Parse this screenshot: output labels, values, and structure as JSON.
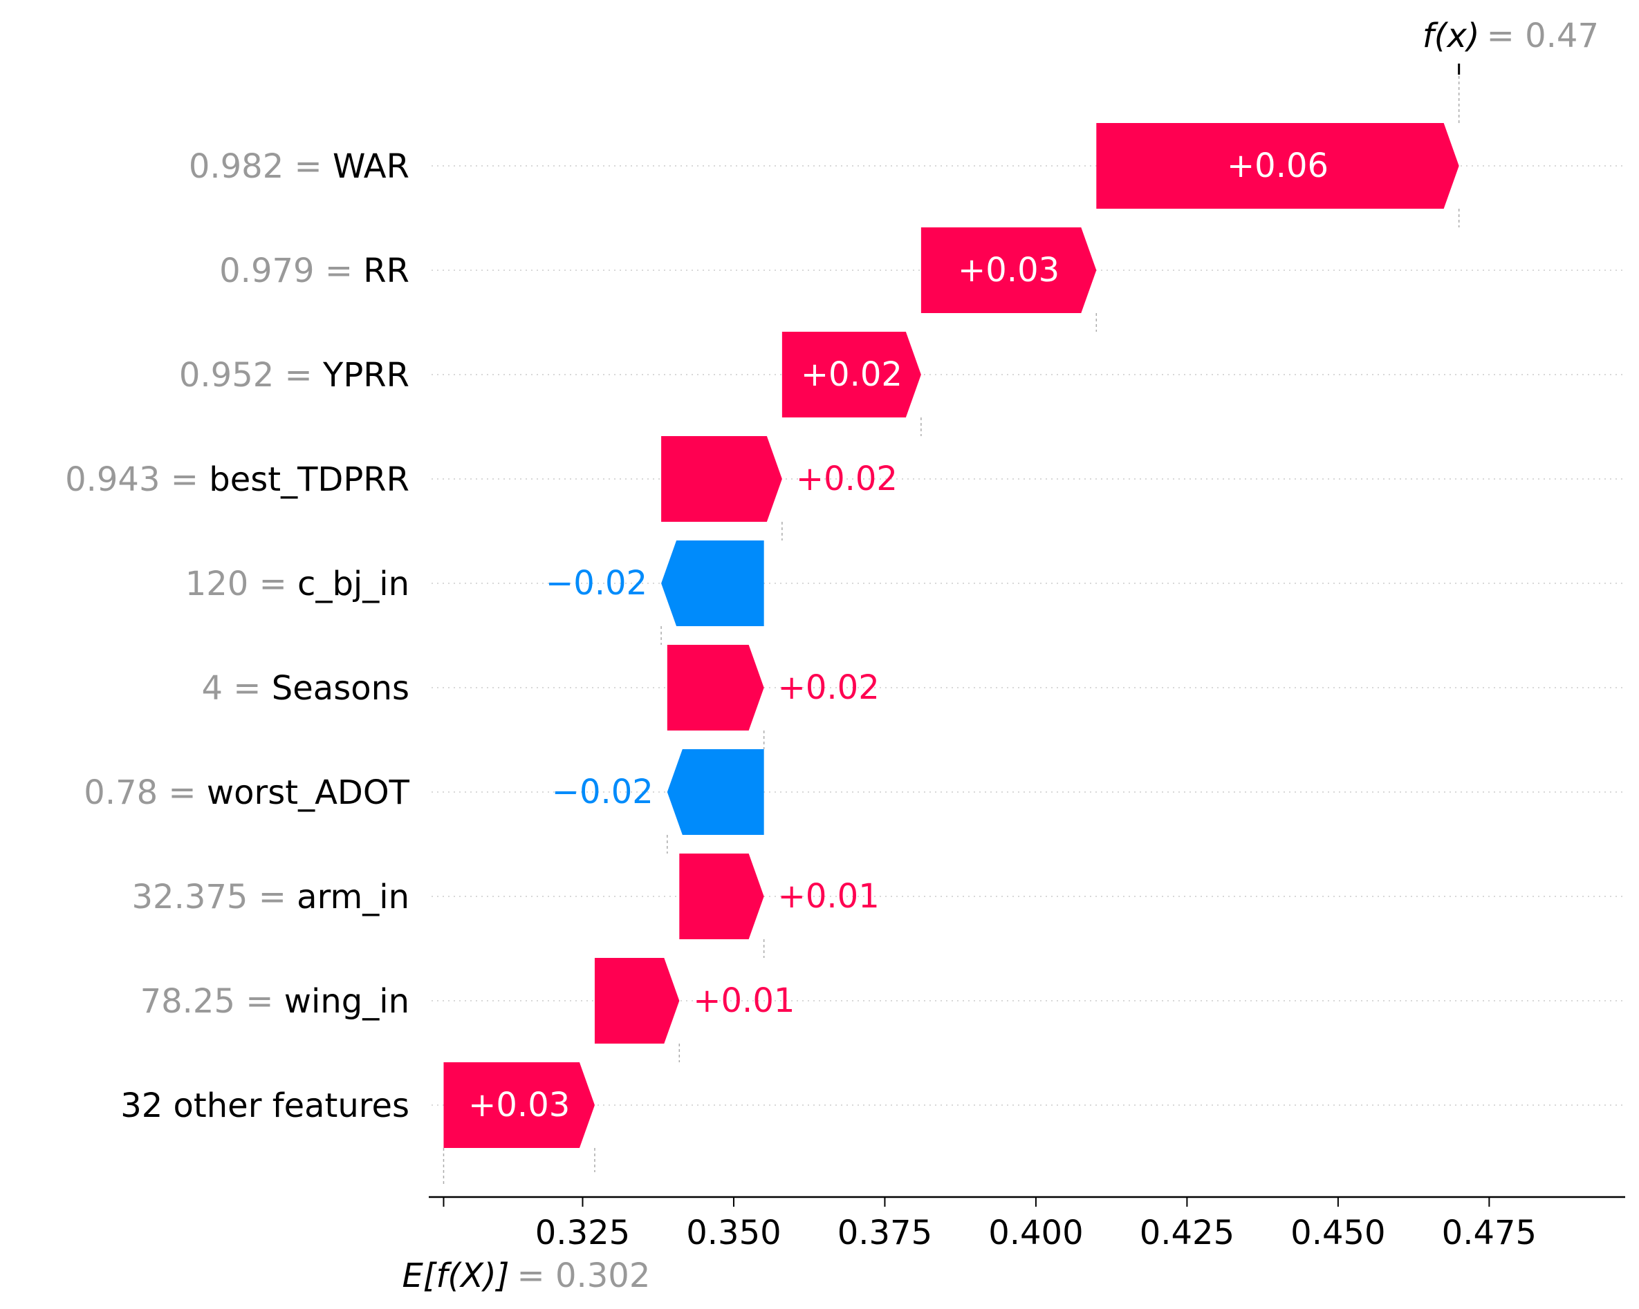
{
  "chart_data": {
    "type": "waterfall",
    "base_value": 0.302,
    "final_value": 0.47,
    "base_label_prefix": "E[f(X)]",
    "base_label_value": "= 0.302",
    "final_label_prefix": "f(x)",
    "final_label_value": "= 0.47",
    "xlim": [
      0.3,
      0.4975
    ],
    "xticks": [
      0.325,
      0.35,
      0.375,
      0.4,
      0.425,
      0.45,
      0.475
    ],
    "xtick_labels": [
      "0.325",
      "0.350",
      "0.375",
      "0.400",
      "0.425",
      "0.450",
      "0.475"
    ],
    "features": [
      {
        "value": "0.982",
        "name": "WAR",
        "contribution": 0.06,
        "start": 0.41,
        "end": 0.47,
        "label": "+0.06"
      },
      {
        "value": "0.979",
        "name": "RR",
        "contribution": 0.029,
        "start": 0.381,
        "end": 0.41,
        "label": "+0.03"
      },
      {
        "value": "0.952",
        "name": "YPRR",
        "contribution": 0.023,
        "start": 0.358,
        "end": 0.381,
        "label": "+0.02"
      },
      {
        "value": "0.943",
        "name": "best_TDPRR",
        "contribution": 0.02,
        "start": 0.338,
        "end": 0.358,
        "label": "+0.02"
      },
      {
        "value": "120",
        "name": "c_bj_in",
        "contribution": -0.017,
        "start": 0.355,
        "end": 0.338,
        "label": "−0.02"
      },
      {
        "value": "4",
        "name": "Seasons",
        "contribution": 0.016,
        "start": 0.339,
        "end": 0.355,
        "label": "+0.02"
      },
      {
        "value": "0.78",
        "name": "worst_ADOT",
        "contribution": -0.016,
        "start": 0.355,
        "end": 0.339,
        "label": "−0.02"
      },
      {
        "value": "32.375",
        "name": "arm_in",
        "contribution": 0.014,
        "start": 0.341,
        "end": 0.355,
        "label": "+0.01"
      },
      {
        "value": "78.25",
        "name": "wing_in",
        "contribution": 0.014,
        "start": 0.327,
        "end": 0.341,
        "label": "+0.01"
      },
      {
        "value": "",
        "name": "32 other features",
        "contribution": 0.025,
        "start": 0.302,
        "end": 0.327,
        "label": "+0.03"
      }
    ],
    "colors": {
      "positive": "#ff0051",
      "negative": "#008bfb",
      "value_gray": "#999999",
      "text": "#000000"
    }
  }
}
